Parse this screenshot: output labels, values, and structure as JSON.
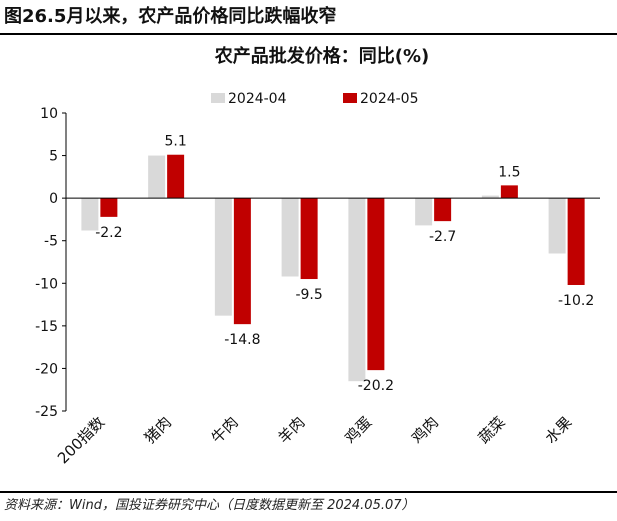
{
  "figure_title": "图26.5月以来，农产品价格同比跌幅收窄",
  "source": "资料来源：Wind，国投证券研究中心（日度数据更新至 2024.05.07）",
  "colors": {
    "s2024_04": "#d9d9d9",
    "s2024_05": "#c00000"
  },
  "chart_data": {
    "type": "bar",
    "title": "农产品批发价格：同比(%)",
    "xlabel": "",
    "ylabel": "",
    "categories": [
      "200指数",
      "猪肉",
      "牛肉",
      "羊肉",
      "鸡蛋",
      "鸡肉",
      "蔬菜",
      "水果"
    ],
    "series": [
      {
        "name": "2024-04",
        "values": [
          -3.8,
          5.0,
          -13.8,
          -9.2,
          -21.5,
          -3.2,
          0.3,
          -6.5
        ]
      },
      {
        "name": "2024-05",
        "values": [
          -2.2,
          5.1,
          -14.8,
          -9.5,
          -20.2,
          -2.7,
          1.5,
          -10.2
        ]
      }
    ],
    "data_labels": [
      "-2.2",
      "5.1",
      "-14.8",
      "-9.5",
      "-20.2",
      "-2.7",
      "1.5",
      "-10.2"
    ],
    "ylim": [
      -25,
      10
    ],
    "yticks": [
      10,
      5,
      0,
      -5,
      -10,
      -15,
      -20,
      -25
    ],
    "grid": false,
    "legend": "top-center"
  }
}
